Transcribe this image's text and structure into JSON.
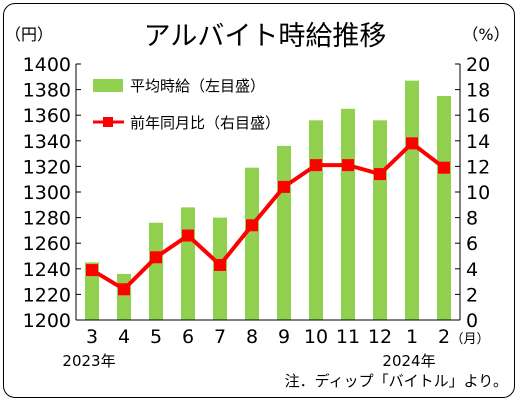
{
  "chart_data": {
    "type": "bar+line",
    "title": "アルバイト時給推移",
    "left_unit": "（円）",
    "right_unit": "（%）",
    "month_unit": "（月）",
    "categories": [
      "3",
      "4",
      "5",
      "6",
      "7",
      "8",
      "9",
      "10",
      "11",
      "12",
      "1",
      "2"
    ],
    "year_labels": [
      {
        "text": "2023年",
        "category_index": 0
      },
      {
        "text": "2024年",
        "category_index": 10
      }
    ],
    "left_axis": {
      "min": 1200,
      "max": 1400,
      "step": 20,
      "ticks": [
        "1200",
        "1220",
        "1240",
        "1260",
        "1280",
        "1300",
        "1320",
        "1340",
        "1360",
        "1380",
        "1400"
      ]
    },
    "right_axis": {
      "min": 0,
      "max": 20,
      "step": 2,
      "ticks": [
        "0",
        "2",
        "4",
        "6",
        "8",
        "10",
        "12",
        "14",
        "16",
        "18",
        "20"
      ]
    },
    "series": [
      {
        "name": "平均時給（左目盛）",
        "type": "bar",
        "axis": "left",
        "color": "#92d050",
        "values": [
          1245,
          1236,
          1276,
          1288,
          1280,
          1319,
          1336,
          1356,
          1365,
          1356,
          1387,
          1375
        ]
      },
      {
        "name": "前年同月比（右目盛）",
        "type": "line",
        "axis": "right",
        "color": "#ff0000",
        "values": [
          3.9,
          2.4,
          4.9,
          6.6,
          4.3,
          7.4,
          10.4,
          12.1,
          12.1,
          11.4,
          13.8,
          11.9
        ]
      }
    ],
    "note": "注．ディップ「バイトル」より。",
    "grid": false,
    "legend_position": "top-left"
  }
}
